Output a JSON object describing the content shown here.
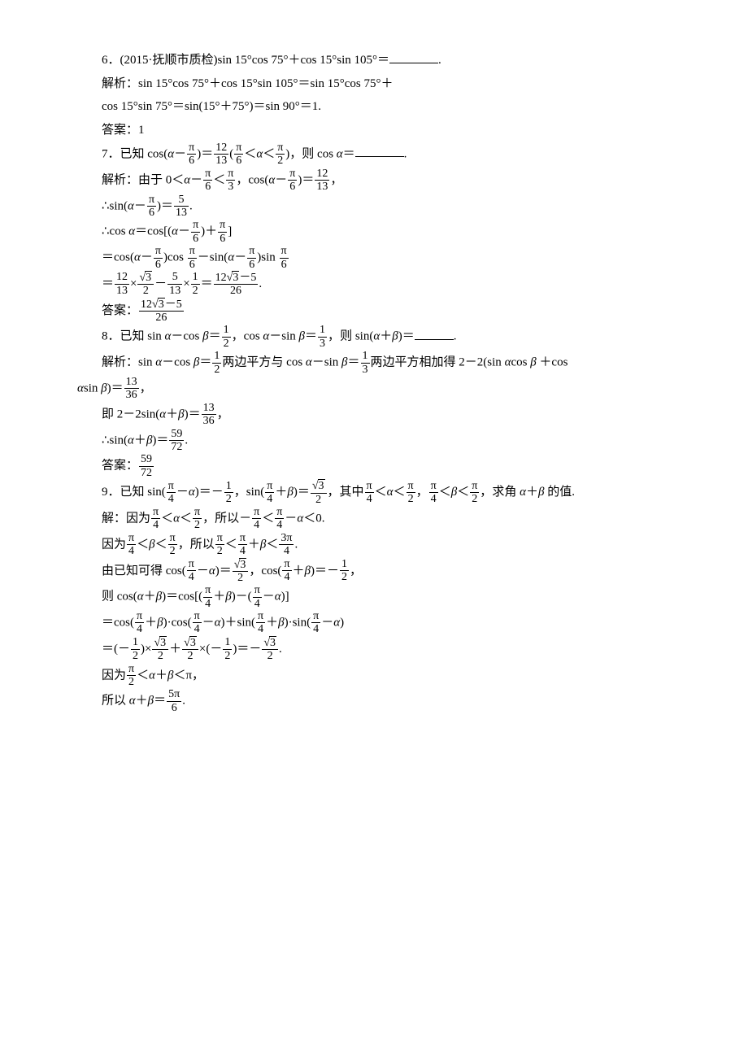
{
  "text_color": "#000000",
  "background_color": "#ffffff",
  "base_fontsize": 15,
  "p6": {
    "q": "6．(2015·抚顺市质检)sin 15°cos 75°＋cos 15°sin 105°＝",
    "s1": "解析：sin 15°cos 75°＋cos 15°sin 105°＝sin 15°cos 75°＋",
    "s2": "cos 15°sin 75°＝sin(15°＋75°)＝sin 90°＝1.",
    "ans_label": "答案：",
    "ans": "1"
  },
  "p7": {
    "q_pre": "7．已知 cos(",
    "alpha": "α",
    "minus": "－",
    "pi": "π",
    "six": "6",
    "eq": ")＝",
    "n12": "12",
    "n13": "13",
    "lp": "(",
    "lt": "＜",
    "two": "2",
    "rp": ")，",
    "then": "则 cos ",
    "eq2": "＝",
    "sol_label": "解析：",
    "sol1a": "由于 0＜",
    "third": "3",
    "comma": "，",
    "sol2a": "∴sin(",
    "n5": "5",
    "dot": ".",
    "sol3a": "∴cos ",
    "eqb": "＝cos[(",
    "plus": "＋",
    "rb": "]",
    "l4a": "＝cos(",
    "cos": ")cos ",
    "msin": "－sin(",
    "sin": ")sin ",
    "l5eq": "＝",
    "times": "×",
    "root3": "3",
    "half2": "2",
    "n26": "26",
    "ans_label": "答案："
  },
  "p8": {
    "q_pre": "8．已知 sin ",
    "alpha": "α",
    "mcos": "－cos ",
    "beta": "β",
    "eq": "＝",
    "n1": "1",
    "n2": "2",
    "comma": "，",
    "cos": "cos ",
    "msin": "－sin ",
    "n3": "3",
    "then": "则 sin(",
    "plus": "＋",
    "rp": ")＝",
    "sol_label": "解析：",
    "sol1a": "sin ",
    "sq": "两边平方与 cos ",
    "sq2": "两边平方相加得 2－2(sin ",
    "cosb": "cos ",
    "pcos": "＋cos",
    "hang_pre": "α",
    "hang_sin": "sin ",
    "hang_b": "β",
    "hang_eq": ")＝",
    "n13": "13",
    "n36": "36",
    "l3": "即 2－2sin(",
    "l4": "∴sin(",
    "n59": "59",
    "n72": "72",
    "ans_label": "答案："
  },
  "p9": {
    "q_pre": "9．已知 sin(",
    "pi": "π",
    "four": "4",
    "minus": "－",
    "alpha": "α",
    "eq": ")＝－",
    "n1": "1",
    "n2": "2",
    "comma": "，",
    "sin": "sin(",
    "plus": "＋",
    "beta": "β",
    "eq2": ")＝",
    "root3": "3",
    "where": "其中",
    "lt": "＜",
    "half2": "2",
    "find": "求角 ",
    "of": " 的值.",
    "sol_label": "解：",
    "l1a": "因为",
    "so": "所以－",
    "lt0": "＜0.",
    "l2a": "因为",
    "so2": "所以",
    "n3": "3",
    "threepi": "3π",
    "l3a": "由已知可得 cos(",
    "cos2": "cos(",
    "eqn": ")＝－",
    "l4a": "则 cos(",
    "cosb": ")＝cos[(",
    "msub": ")－(",
    "rb": ")]",
    "l5a": "＝cos(",
    "dcos": ")·cos(",
    "psin": ")＋sin(",
    "dsin": ")·sin(",
    "rp2": ")",
    "l6a": "＝(－",
    "times": "×",
    "pplus": "＋",
    "eqf": ")＝－",
    "l7a": "因为",
    "ltpi": "＜π，",
    "l8a": "所以 ",
    "eq3": "＝",
    "fivepi": "5π",
    "six": "6"
  }
}
